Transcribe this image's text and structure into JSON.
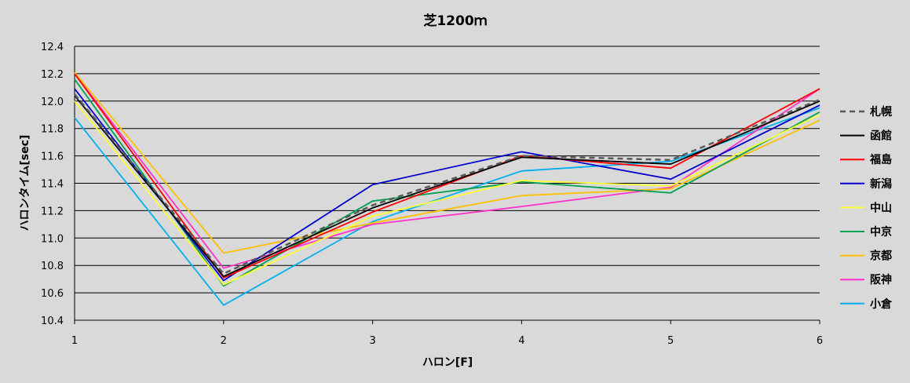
{
  "chart_data": {
    "type": "line",
    "title": "芝1200ｍ",
    "xlabel": "ハロン[F]",
    "ylabel": "ハロンタイム[sec]",
    "x": [
      1,
      2,
      3,
      4,
      5,
      6
    ],
    "x_ticks": [
      "1",
      "2",
      "3",
      "4",
      "5",
      "6"
    ],
    "ylim": [
      10.4,
      12.4
    ],
    "y_ticks": [
      "10.4",
      "10.6",
      "10.8",
      "11.0",
      "11.2",
      "11.4",
      "11.6",
      "11.8",
      "12.0",
      "12.2",
      "12.4"
    ],
    "grid": "horizontal",
    "legend_position": "right",
    "series": [
      {
        "name": "札幌",
        "color": "#595959",
        "dashed": true,
        "values": [
          12.05,
          10.74,
          11.24,
          11.6,
          11.57,
          12.01
        ]
      },
      {
        "name": "函館",
        "color": "#000000",
        "dashed": false,
        "values": [
          12.04,
          10.72,
          11.22,
          11.59,
          11.54,
          12.0
        ]
      },
      {
        "name": "福島",
        "color": "#ff0000",
        "dashed": false,
        "values": [
          12.2,
          10.71,
          11.19,
          11.6,
          11.51,
          12.09
        ]
      },
      {
        "name": "新潟",
        "color": "#0000cc",
        "dashed": false,
        "values": [
          12.09,
          10.69,
          11.39,
          11.63,
          11.43,
          11.97
        ]
      },
      {
        "name": "中山",
        "color": "#ffff33",
        "dashed": false,
        "values": [
          12.0,
          10.66,
          11.16,
          11.42,
          11.38,
          11.9
        ]
      },
      {
        "name": "中京",
        "color": "#00a050",
        "dashed": false,
        "values": [
          12.16,
          10.65,
          11.27,
          11.41,
          11.33,
          11.92
        ]
      },
      {
        "name": "京都",
        "color": "#ffc000",
        "dashed": false,
        "values": [
          12.21,
          10.89,
          11.11,
          11.31,
          11.36,
          11.86
        ]
      },
      {
        "name": "阪神",
        "color": "#ff33cc",
        "dashed": false,
        "values": [
          12.2,
          10.78,
          11.1,
          11.23,
          11.37,
          12.09
        ]
      },
      {
        "name": "小倉",
        "color": "#00b0f0",
        "dashed": false,
        "values": [
          11.88,
          10.51,
          11.12,
          11.49,
          11.56,
          11.95
        ]
      }
    ]
  }
}
